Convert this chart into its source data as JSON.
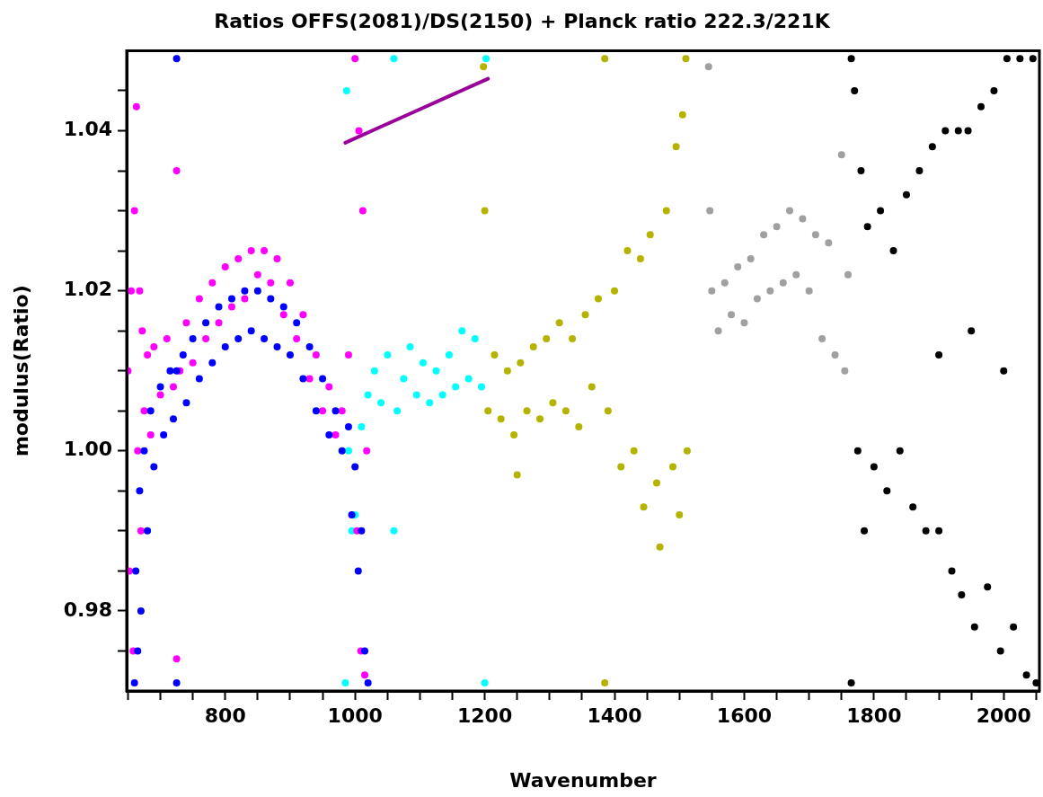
{
  "chart_data": {
    "type": "scatter",
    "title": "Ratios OFFS(2081)/DS(2150) + Planck ratio 222.3/221K",
    "xlabel": "Wavenumber",
    "ylabel": "modulus(Ratio)",
    "xlim": [
      648,
      2055
    ],
    "ylim": [
      0.97,
      1.05
    ],
    "xticks": [
      {
        "value": 650,
        "label": null
      },
      {
        "value": 700,
        "label": null
      },
      {
        "value": 750,
        "label": null
      },
      {
        "value": 800,
        "label": "800"
      },
      {
        "value": 850,
        "label": null
      },
      {
        "value": 900,
        "label": null
      },
      {
        "value": 950,
        "label": null
      },
      {
        "value": 1000,
        "label": "1000"
      },
      {
        "value": 1050,
        "label": null
      },
      {
        "value": 1100,
        "label": null
      },
      {
        "value": 1150,
        "label": null
      },
      {
        "value": 1200,
        "label": "1200"
      },
      {
        "value": 1250,
        "label": null
      },
      {
        "value": 1300,
        "label": null
      },
      {
        "value": 1350,
        "label": null
      },
      {
        "value": 1400,
        "label": "1400"
      },
      {
        "value": 1450,
        "label": null
      },
      {
        "value": 1500,
        "label": null
      },
      {
        "value": 1550,
        "label": null
      },
      {
        "value": 1600,
        "label": "1600"
      },
      {
        "value": 1650,
        "label": null
      },
      {
        "value": 1700,
        "label": null
      },
      {
        "value": 1750,
        "label": null
      },
      {
        "value": 1800,
        "label": "1800"
      },
      {
        "value": 1850,
        "label": null
      },
      {
        "value": 1900,
        "label": null
      },
      {
        "value": 1950,
        "label": null
      },
      {
        "value": 2000,
        "label": "2000"
      },
      {
        "value": 2050,
        "label": null
      }
    ],
    "yticks": [
      {
        "value": 0.975,
        "label": null
      },
      {
        "value": 0.98,
        "label": "0.98"
      },
      {
        "value": 0.985,
        "label": null
      },
      {
        "value": 0.99,
        "label": null
      },
      {
        "value": 0.995,
        "label": null
      },
      {
        "value": 1,
        "label": "1.00"
      },
      {
        "value": 1.005,
        "label": null
      },
      {
        "value": 1.01,
        "label": null
      },
      {
        "value": 1.015,
        "label": null
      },
      {
        "value": 1.02,
        "label": "1.02"
      },
      {
        "value": 1.025,
        "label": null
      },
      {
        "value": 1.03,
        "label": null
      },
      {
        "value": 1.035,
        "label": null
      },
      {
        "value": 1.04,
        "label": "1.04"
      },
      {
        "value": 1.045,
        "label": null
      }
    ],
    "marker": "circle",
    "legend": false,
    "series": [
      {
        "color": "#0000ff",
        "x": [
          660,
          662,
          665,
          668,
          670,
          675,
          680,
          685,
          690,
          700,
          705,
          715,
          720,
          725,
          725,
          725,
          735,
          740,
          750,
          760,
          770,
          780,
          790,
          800,
          810,
          820,
          830,
          840,
          850,
          860,
          870,
          880,
          890,
          900,
          910,
          920,
          930,
          940,
          950,
          960,
          970,
          980,
          990,
          995,
          1000,
          1005,
          1010,
          1015,
          1020
        ],
        "values": [
          0.971,
          0.985,
          0.975,
          0.995,
          0.98,
          1.0,
          0.99,
          1.005,
          0.998,
          1.008,
          1.002,
          1.01,
          1.004,
          0.971,
          1.049,
          1.01,
          1.012,
          1.006,
          1.014,
          1.009,
          1.016,
          1.011,
          1.018,
          1.013,
          1.019,
          1.014,
          1.02,
          1.015,
          1.02,
          1.014,
          1.019,
          1.013,
          1.018,
          1.012,
          1.016,
          1.009,
          1.013,
          1.005,
          1.009,
          1.002,
          1.005,
          1.0,
          1.003,
          0.992,
          0.998,
          0.985,
          0.99,
          0.975,
          0.971
        ]
      },
      {
        "color": "#ff00ff",
        "x": [
          650,
          652,
          655,
          658,
          660,
          663,
          665,
          668,
          670,
          672,
          675,
          680,
          685,
          690,
          700,
          710,
          720,
          725,
          725,
          730,
          740,
          750,
          760,
          770,
          780,
          790,
          800,
          810,
          820,
          830,
          840,
          850,
          860,
          870,
          880,
          890,
          900,
          910,
          920,
          930,
          940,
          950,
          960,
          970,
          980,
          990,
          1000,
          1003,
          1006,
          1009,
          1012,
          1015,
          1018
        ],
        "values": [
          1.01,
          0.985,
          1.02,
          0.975,
          1.03,
          1.043,
          1.0,
          1.02,
          0.99,
          1.015,
          1.005,
          1.012,
          1.002,
          1.013,
          1.007,
          1.014,
          1.008,
          1.035,
          0.974,
          1.01,
          1.016,
          1.011,
          1.019,
          1.014,
          1.021,
          1.016,
          1.023,
          1.018,
          1.024,
          1.019,
          1.025,
          1.022,
          1.025,
          1.021,
          1.024,
          1.017,
          1.021,
          1.014,
          1.017,
          1.009,
          1.012,
          1.005,
          1.008,
          1.002,
          1.005,
          1.012,
          1.049,
          0.99,
          1.04,
          0.975,
          1.03,
          0.972,
          1.0
        ]
      },
      {
        "color": "#00ffff",
        "x": [
          985,
          987,
          990,
          995,
          1000,
          1010,
          1020,
          1030,
          1040,
          1050,
          1060,
          1060,
          1065,
          1075,
          1085,
          1095,
          1105,
          1115,
          1125,
          1135,
          1145,
          1155,
          1165,
          1175,
          1185,
          1195,
          1200,
          1202
        ],
        "values": [
          0.971,
          1.045,
          1.0,
          0.99,
          0.992,
          1.003,
          1.007,
          1.01,
          1.006,
          1.012,
          1.049,
          0.99,
          1.005,
          1.009,
          1.013,
          1.007,
          1.011,
          1.006,
          1.01,
          1.007,
          1.012,
          1.008,
          1.015,
          1.009,
          1.014,
          1.008,
          0.971,
          1.049
        ]
      },
      {
        "color": "#b4b400",
        "x": [
          1198,
          1200,
          1205,
          1215,
          1225,
          1235,
          1245,
          1250,
          1255,
          1265,
          1275,
          1285,
          1295,
          1305,
          1315,
          1325,
          1335,
          1345,
          1355,
          1365,
          1375,
          1385,
          1385,
          1390,
          1400,
          1410,
          1420,
          1430,
          1440,
          1445,
          1455,
          1465,
          1470,
          1480,
          1490,
          1495,
          1500,
          1505,
          1510,
          1512
        ],
        "values": [
          1.048,
          1.03,
          1.005,
          1.012,
          1.004,
          1.01,
          1.002,
          0.997,
          1.011,
          1.005,
          1.013,
          1.004,
          1.014,
          1.006,
          1.016,
          1.005,
          1.014,
          1.003,
          1.017,
          1.008,
          1.019,
          1.049,
          0.971,
          1.005,
          1.02,
          0.998,
          1.025,
          1.0,
          1.024,
          0.993,
          1.027,
          0.996,
          0.988,
          1.03,
          0.998,
          1.038,
          0.992,
          1.042,
          1.049,
          1.0
        ]
      },
      {
        "color": "#a0a0a0",
        "x": [
          1545,
          1547,
          1550,
          1560,
          1570,
          1580,
          1590,
          1600,
          1610,
          1620,
          1630,
          1640,
          1650,
          1660,
          1670,
          1680,
          1690,
          1700,
          1710,
          1720,
          1730,
          1740,
          1750,
          1755,
          1760
        ],
        "values": [
          1.048,
          1.03,
          1.02,
          1.015,
          1.021,
          1.017,
          1.023,
          1.016,
          1.024,
          1.019,
          1.027,
          1.02,
          1.028,
          1.021,
          1.03,
          1.022,
          1.029,
          1.02,
          1.027,
          1.014,
          1.026,
          1.012,
          1.037,
          1.01,
          1.022
        ]
      },
      {
        "color": "#000000",
        "x": [
          1765,
          1765,
          1770,
          1775,
          1780,
          1785,
          1790,
          1800,
          1810,
          1820,
          1830,
          1840,
          1850,
          1860,
          1870,
          1880,
          1890,
          1900,
          1900,
          1910,
          1920,
          1930,
          1935,
          1945,
          1950,
          1955,
          1965,
          1975,
          1985,
          1995,
          2000,
          2005,
          2015,
          2025,
          2035,
          2045,
          2050
        ],
        "values": [
          0.971,
          1.049,
          1.045,
          1.0,
          1.035,
          0.99,
          1.028,
          0.998,
          1.03,
          0.995,
          1.025,
          1.0,
          1.032,
          0.993,
          1.035,
          0.99,
          1.038,
          0.99,
          1.012,
          1.04,
          0.985,
          1.04,
          0.982,
          1.04,
          1.015,
          0.978,
          1.043,
          0.983,
          1.045,
          0.975,
          1.01,
          1.049,
          0.978,
          1.049,
          0.972,
          1.049,
          0.971
        ]
      },
      {
        "type": "line",
        "marker": "none",
        "color": "#990099",
        "x": [
          985,
          1040,
          1095,
          1150,
          1205
        ],
        "values": [
          1.0385,
          1.0405,
          1.0425,
          1.0445,
          1.0465
        ]
      }
    ]
  }
}
